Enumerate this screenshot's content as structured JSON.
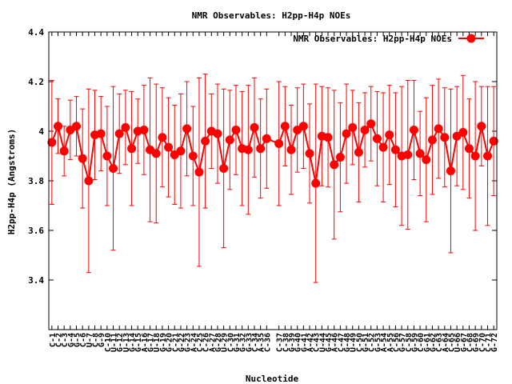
{
  "chart_data": {
    "type": "line",
    "title": "NMR Observables: H2pp-H4p NOEs",
    "xlabel": "Nucleotide",
    "ylabel": "H2pp-H4p (Angstroms)",
    "ylim": [
      3.2,
      4.4
    ],
    "yticks": [
      "3.4",
      "3.6",
      "3.8",
      "4",
      "4.2",
      "4.4"
    ],
    "ytick_values": [
      3.4,
      3.6,
      3.8,
      4.0,
      4.2,
      4.4
    ],
    "grid": false,
    "legend_position": "top-right",
    "colors": {
      "series": "#ff0000",
      "axis": "#000000"
    },
    "categories": [
      "C-1",
      "C-2",
      "C-3",
      "G-4",
      "G-5",
      "C-6",
      "U-7",
      "C-8",
      "G-9",
      "C-10",
      "U-11",
      "G-12",
      "U-13",
      "G-14",
      "G-15",
      "A-16",
      "G-17",
      "U-18",
      "G-19",
      "G-20",
      "C-21",
      "G-22",
      "G-23",
      "A-24",
      "C-25",
      "C-26",
      "A-27",
      "G-28",
      "U-29",
      "C-30",
      "G-31",
      "G-32",
      "G-33",
      "C-34",
      "A-35",
      "C-36",
      "C-37",
      "C-38",
      "G-39",
      "G-40",
      "G-41",
      "A-42",
      "C-43",
      "U-44",
      "G-45",
      "A-46",
      "C-47",
      "G-48",
      "U-49",
      "C-50",
      "G-51",
      "C-52",
      "G-53",
      "A-54",
      "A-55",
      "C-56",
      "G-57",
      "C-58",
      "G-59",
      "C-60",
      "G-61",
      "G-62",
      "C-63",
      "A-64",
      "C-65",
      "U-66",
      "G-67",
      "C-68",
      "G-69",
      "C-70",
      "C-71",
      "G-72"
    ],
    "x": [
      1,
      2,
      3,
      4,
      5,
      6,
      7,
      8,
      9,
      10,
      11,
      12,
      13,
      14,
      15,
      16,
      17,
      18,
      19,
      20,
      21,
      22,
      23,
      24,
      25,
      26,
      27,
      28,
      29,
      30,
      31,
      32,
      33,
      34,
      35,
      36,
      38,
      39,
      40,
      41,
      42,
      43,
      44,
      45,
      46,
      47,
      48,
      49,
      50,
      51,
      52,
      53,
      54,
      55,
      56,
      57,
      58,
      59,
      60,
      61,
      62,
      63,
      64,
      65,
      66,
      67,
      68,
      69,
      70,
      71,
      72,
      73
    ],
    "series": [
      {
        "name": "NMR Observables: H2pp-H4p NOEs",
        "values": [
          3.955,
          4.02,
          3.92,
          4.005,
          4.02,
          3.89,
          3.8,
          3.985,
          3.99,
          3.9,
          3.85,
          3.99,
          4.015,
          3.93,
          4.0,
          4.005,
          3.925,
          3.91,
          3.975,
          3.935,
          3.905,
          3.92,
          4.01,
          3.9,
          3.835,
          3.96,
          4.0,
          3.99,
          3.85,
          3.965,
          4.005,
          3.93,
          3.925,
          4.015,
          3.93,
          3.97,
          3.95,
          4.02,
          3.925,
          4.005,
          4.02,
          3.91,
          3.79,
          3.98,
          3.975,
          3.865,
          3.895,
          3.99,
          4.015,
          3.915,
          4.005,
          4.03,
          3.97,
          3.935,
          3.985,
          3.925,
          3.9,
          3.905,
          4.005,
          3.91,
          3.885,
          3.965,
          4.01,
          3.975,
          3.84,
          3.98,
          3.995,
          3.93,
          3.9,
          4.02,
          3.9,
          3.96
        ],
        "errors": [
          0.25,
          0.11,
          0.1,
          0.12,
          0.12,
          0.2,
          0.37,
          0.18,
          0.15,
          0.2,
          0.33,
          0.16,
          0.15,
          0.23,
          0.13,
          0.18,
          0.29,
          0.28,
          0.2,
          0.2,
          0.2,
          0.23,
          0.19,
          0.2,
          0.38,
          0.27,
          0.15,
          0.2,
          0.32,
          0.2,
          0.18,
          0.23,
          0.26,
          0.2,
          0.2,
          0.2,
          0.25,
          0.16,
          0.18,
          0.17,
          0.17,
          0.2,
          0.4,
          0.2,
          0.2,
          0.3,
          0.22,
          0.2,
          0.15,
          0.2,
          0.15,
          0.15,
          0.19,
          0.22,
          0.2,
          0.23,
          0.28,
          0.3,
          0.2,
          0.17,
          0.25,
          0.22,
          0.2,
          0.2,
          0.33,
          0.2,
          0.23,
          0.2,
          0.3,
          0.16,
          0.28,
          0.22
        ]
      }
    ]
  }
}
